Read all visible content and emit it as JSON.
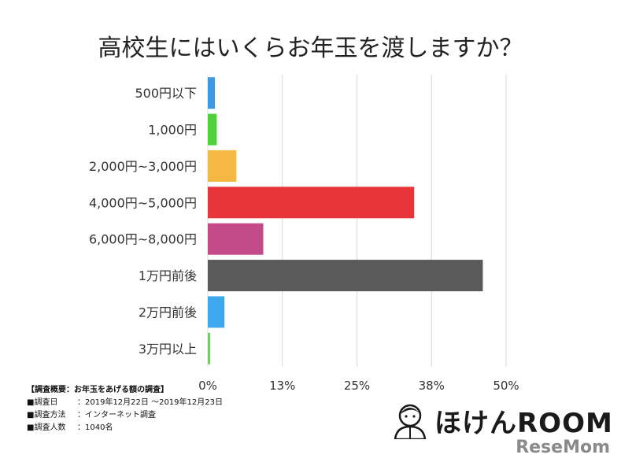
{
  "chart_data": {
    "type": "bar",
    "orientation": "horizontal",
    "title": "高校生にはいくらお年玉を渡しますか？",
    "categories": [
      "500円以下",
      "1,000円",
      "2,000円~3,000円",
      "4,000円~5,000円",
      "6,000円~8,000円",
      "1万円前後",
      "2万円前後",
      "3万円以上"
    ],
    "values": [
      1.2,
      1.5,
      4.8,
      34.6,
      9.3,
      46.1,
      2.8,
      0.4
    ],
    "colors": [
      "#3b9ae6",
      "#4fd13a",
      "#f5b842",
      "#e8353a",
      "#c44a8a",
      "#5a5a5a",
      "#3ea8ef",
      "#6ed458"
    ],
    "xlim": [
      0,
      50
    ],
    "xticks": [
      0,
      12.5,
      25,
      37.5,
      50
    ],
    "xtick_labels": [
      "0%",
      "13%",
      "25%",
      "38%",
      "50%"
    ],
    "grid": true
  },
  "survey": {
    "heading": "【調査概要：お年玉をあげる額の調査】",
    "rows": [
      {
        "key": "■調査日",
        "value": "：2019年12月22日 ～2019年12月23日"
      },
      {
        "key": "■調査方法",
        "value": "：インターネット調査"
      },
      {
        "key": "■調査人数",
        "value": "：1040名"
      }
    ]
  },
  "logo": {
    "text": "ほけんROOM",
    "icon": "person-avatar-icon"
  },
  "watermark": "ReseMom"
}
